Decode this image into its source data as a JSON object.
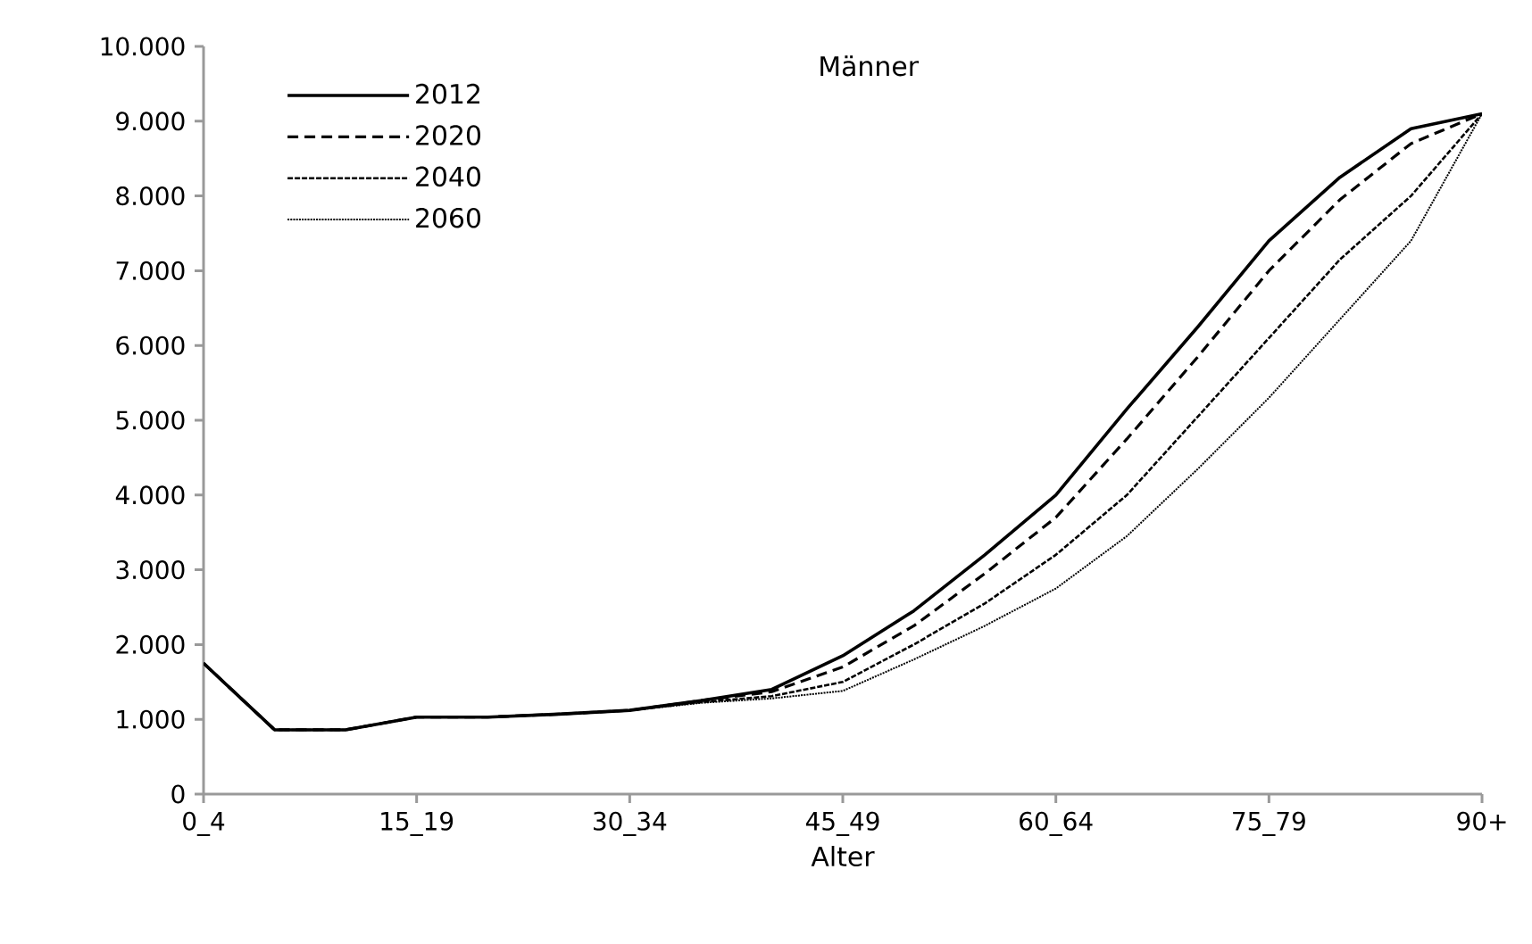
{
  "chart_data": {
    "type": "line",
    "title": "Männer",
    "xlabel": "Alter",
    "categories": [
      "0_4",
      null,
      null,
      "15_19",
      null,
      null,
      "30_34",
      null,
      null,
      "45_49",
      null,
      null,
      "60_64",
      null,
      null,
      "75_79",
      null,
      null,
      "90+"
    ],
    "ylim": [
      0,
      10000
    ],
    "yticks": [
      0,
      {
        "value": 1000,
        "label": "1.000"
      },
      {
        "value": 2000,
        "label": "2.000"
      },
      {
        "value": 3000,
        "label": "3.000"
      },
      {
        "value": 4000,
        "label": "4.000"
      },
      {
        "value": 5000,
        "label": "5.000"
      },
      {
        "value": 6000,
        "label": "6.000"
      },
      {
        "value": 7000,
        "label": "7.000"
      },
      {
        "value": 8000,
        "label": "8.000"
      },
      {
        "value": 9000,
        "label": "9.000"
      },
      {
        "value": 10000,
        "label": "10.000"
      }
    ],
    "grid": false,
    "legend": "top left",
    "marker": "none",
    "series": [
      {
        "name": "2012",
        "color": "#000000",
        "line_style": "solid",
        "values": [
          1750,
          860,
          860,
          1030,
          1030,
          1070,
          1120,
          1250,
          1400,
          1850,
          2450,
          3200,
          4000,
          5150,
          6250,
          7400,
          8250,
          8900,
          9100
        ]
      },
      {
        "name": "2020",
        "color": "#000000",
        "line_style": "dashed",
        "values": [
          1750,
          860,
          860,
          1030,
          1030,
          1070,
          1120,
          1250,
          1370,
          1700,
          2250,
          2950,
          3700,
          4750,
          5850,
          7000,
          7950,
          8700,
          9100
        ]
      },
      {
        "name": "2040",
        "color": "#000000",
        "line_style": "densely dashed",
        "values": [
          1750,
          860,
          860,
          1030,
          1030,
          1070,
          1120,
          1230,
          1310,
          1500,
          2000,
          2550,
          3200,
          4000,
          5050,
          6100,
          7150,
          8000,
          9100
        ]
      },
      {
        "name": "2060",
        "color": "#000000",
        "line_style": "dotted",
        "values": [
          1750,
          860,
          860,
          1030,
          1030,
          1070,
          1120,
          1220,
          1280,
          1380,
          1800,
          2250,
          2750,
          3450,
          4350,
          5300,
          6350,
          7400,
          9100
        ]
      }
    ]
  }
}
